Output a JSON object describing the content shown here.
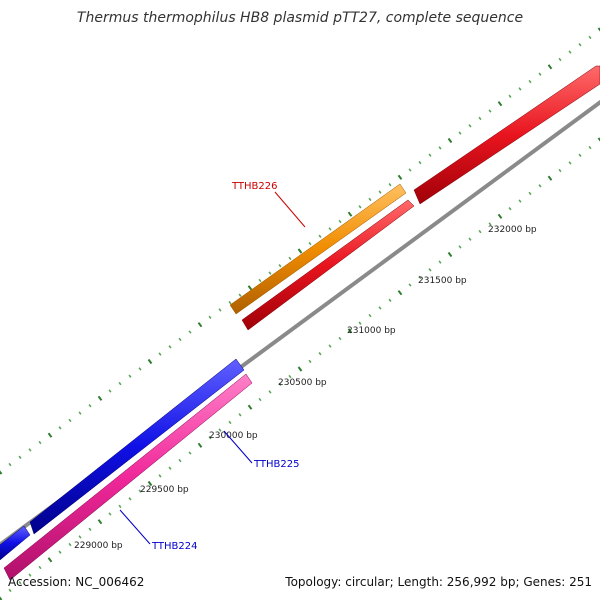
{
  "title": "Thermus thermophilus HB8 plasmid pTT27, complete sequence",
  "footer": {
    "accession": "Accession: NC_006462",
    "summary": "Topology: circular; Length: 256,992 bp; Genes: 251"
  },
  "colors": {
    "backbone": "#8a8a8a",
    "tick_major": "#2e7d2e",
    "tick_minor": "#5aa55a",
    "gene_red": "#e8141e",
    "gene_orange": "#f08c00",
    "gene_blue": "#1010e6",
    "gene_pink": "#f0289a",
    "label_red": "#cc0000",
    "label_blue": "#0000cc"
  },
  "ruler_labels": [
    "232000 bp",
    "231500 bp",
    "231000 bp",
    "230500 bp",
    "230000 bp",
    "229500 bp",
    "229000 bp"
  ],
  "genes": [
    {
      "name": "TTHB226",
      "color": "orange",
      "strand": "forward",
      "label_color": "red"
    },
    {
      "name": "TTHB225",
      "color": "blue",
      "strand": "forward",
      "label_color": "blue"
    },
    {
      "name": "TTHB224",
      "color": "pink",
      "strand": "reverse",
      "label_color": "blue"
    },
    {
      "name": "",
      "color": "red",
      "strand": "reverse",
      "label_color": ""
    },
    {
      "name": "",
      "color": "red",
      "strand": "forward",
      "label_color": ""
    }
  ]
}
